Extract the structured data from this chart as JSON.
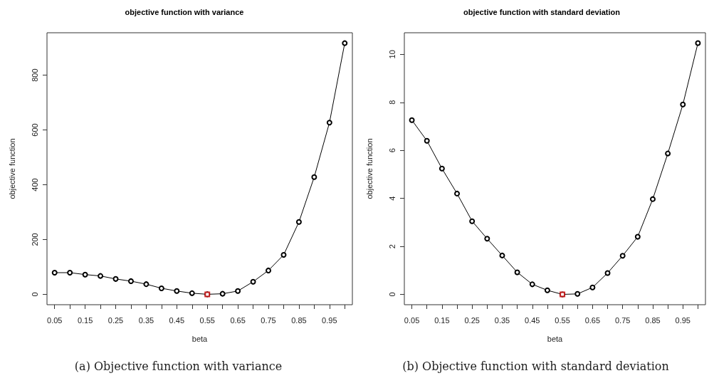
{
  "chart_data": [
    {
      "type": "line",
      "title": "objective function with variance",
      "xlabel": "beta",
      "ylabel": "objective function",
      "categories": [
        "0.05",
        null,
        "0.15",
        null,
        "0.25",
        null,
        "0.35",
        null,
        "0.45",
        null,
        "0.55",
        null,
        "0.65",
        null,
        "0.75",
        null,
        "0.85",
        null,
        "0.95",
        null
      ],
      "series": [
        {
          "color": "#000000",
          "marker": "circle",
          "values": [
            79,
            79,
            72,
            67,
            56,
            48,
            37,
            22,
            12,
            4,
            0,
            2,
            12,
            46,
            87,
            144,
            264,
            428,
            627,
            917
          ]
        },
        {
          "type": "scatter",
          "color": "#cc0000",
          "marker": "square",
          "x": [
            "0.55"
          ],
          "values": [
            0
          ]
        }
      ],
      "ylim": [
        -38,
        955
      ],
      "yticks": [
        0,
        200,
        400,
        600,
        800
      ],
      "grid": false,
      "annotations": [
        "(a) Objective function with variance"
      ]
    },
    {
      "type": "line",
      "title": "objective function with standard deviation",
      "xlabel": "beta",
      "ylabel": "objective function",
      "categories": [
        "0.05",
        null,
        "0.15",
        null,
        "0.25",
        null,
        "0.35",
        null,
        "0.45",
        null,
        "0.55",
        null,
        "0.65",
        null,
        "0.75",
        null,
        "0.85",
        null,
        "0.95",
        null
      ],
      "series": [
        {
          "color": "#000000",
          "marker": "circle",
          "values": [
            7.26,
            6.4,
            5.24,
            4.2,
            3.05,
            2.32,
            1.62,
            0.92,
            0.42,
            0.17,
            0,
            0.02,
            0.29,
            0.89,
            1.61,
            2.4,
            3.97,
            5.87,
            7.91,
            10.47
          ]
        },
        {
          "type": "scatter",
          "color": "#cc0000",
          "marker": "square",
          "x": [
            "0.55"
          ],
          "values": [
            0
          ]
        }
      ],
      "ylim": [
        -0.43,
        10.9
      ],
      "yticks": [
        0,
        2,
        4,
        6,
        8,
        10
      ],
      "grid": false,
      "annotations": [
        "(b) Objective function with standard deviation"
      ]
    }
  ]
}
